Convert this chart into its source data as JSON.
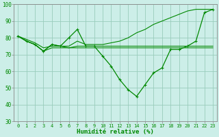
{
  "x": [
    0,
    1,
    2,
    3,
    4,
    5,
    6,
    7,
    8,
    9,
    10,
    11,
    12,
    13,
    14,
    15,
    16,
    17,
    18,
    19,
    20,
    21,
    22,
    23
  ],
  "line1": [
    81,
    78,
    76,
    72,
    76,
    75,
    80,
    85,
    75,
    75,
    69,
    63,
    55,
    49,
    45,
    52,
    59,
    62,
    73,
    73,
    75,
    78,
    95,
    97
  ],
  "line2": [
    81,
    78,
    76,
    72,
    76,
    75,
    74,
    75,
    75,
    75,
    75,
    75,
    75,
    75,
    75,
    75,
    75,
    75,
    75,
    75,
    75,
    75,
    75,
    75
  ],
  "line3": [
    81,
    78,
    76,
    72,
    74,
    74,
    74,
    74,
    74,
    74,
    74,
    74,
    74,
    74,
    74,
    74,
    74,
    74,
    74,
    74,
    74,
    74,
    74,
    74
  ],
  "line4": [
    81,
    79,
    77,
    74,
    75,
    75,
    75,
    78,
    76,
    76,
    76,
    77,
    78,
    80,
    83,
    85,
    88,
    90,
    92,
    94,
    96,
    97,
    97,
    97
  ],
  "bg_color": "#cceee8",
  "grid_color": "#99ccbb",
  "line_color": "#008800",
  "xlabel": "Humidité relative (%)",
  "ylim": [
    30,
    100
  ],
  "xlim": [
    -0.5,
    23.5
  ],
  "yticks": [
    30,
    40,
    50,
    60,
    70,
    80,
    90,
    100
  ],
  "xticks": [
    0,
    1,
    2,
    3,
    4,
    5,
    6,
    7,
    8,
    9,
    10,
    11,
    12,
    13,
    14,
    15,
    16,
    17,
    18,
    19,
    20,
    21,
    22,
    23
  ],
  "tick_fontsize": 5,
  "xlabel_fontsize": 6.5,
  "spine_color": "#888888"
}
